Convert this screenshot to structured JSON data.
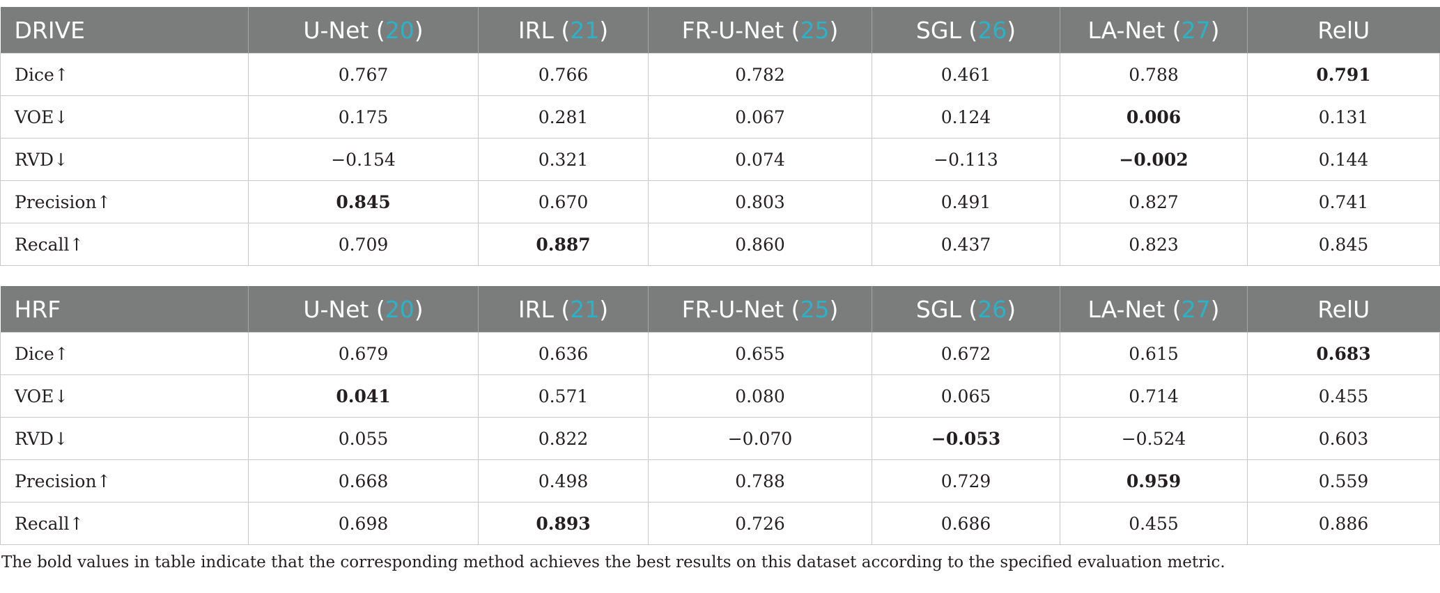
{
  "tables": [
    {
      "dataset": "DRIVE",
      "methods": [
        {
          "name": "U-Net",
          "ref": "20"
        },
        {
          "name": "IRL",
          "ref": "21"
        },
        {
          "name": "FR-U-Net",
          "ref": "25"
        },
        {
          "name": "SGL",
          "ref": "26"
        },
        {
          "name": "LA-Net",
          "ref": "27"
        },
        {
          "name": "RelU",
          "ref": ""
        }
      ],
      "rows": [
        {
          "metric": "Dice↑",
          "values": [
            "0.767",
            "0.766",
            "0.782",
            "0.461",
            "0.788",
            "0.791"
          ],
          "best": 5
        },
        {
          "metric": "VOE↓",
          "values": [
            "0.175",
            "0.281",
            "0.067",
            "0.124",
            "0.006",
            "0.131"
          ],
          "best": 4
        },
        {
          "metric": "RVD↓",
          "values": [
            "−0.154",
            "0.321",
            "0.074",
            "−0.113",
            "−0.002",
            "0.144"
          ],
          "best": 4
        },
        {
          "metric": "Precision↑",
          "values": [
            "0.845",
            "0.670",
            "0.803",
            "0.491",
            "0.827",
            "0.741"
          ],
          "best": 0
        },
        {
          "metric": "Recall↑",
          "values": [
            "0.709",
            "0.887",
            "0.860",
            "0.437",
            "0.823",
            "0.845"
          ],
          "best": 1
        }
      ]
    },
    {
      "dataset": "HRF",
      "methods": [
        {
          "name": "U-Net",
          "ref": "20"
        },
        {
          "name": "IRL",
          "ref": "21"
        },
        {
          "name": "FR-U-Net",
          "ref": "25"
        },
        {
          "name": "SGL",
          "ref": "26"
        },
        {
          "name": "LA-Net",
          "ref": "27"
        },
        {
          "name": "RelU",
          "ref": ""
        }
      ],
      "rows": [
        {
          "metric": "Dice↑",
          "values": [
            "0.679",
            "0.636",
            "0.655",
            "0.672",
            "0.615",
            "0.683"
          ],
          "best": 5
        },
        {
          "metric": "VOE↓",
          "values": [
            "0.041",
            "0.571",
            "0.080",
            "0.065",
            "0.714",
            "0.455"
          ],
          "best": 0
        },
        {
          "metric": "RVD↓",
          "values": [
            "0.055",
            "0.822",
            "−0.070",
            "−0.053",
            "−0.524",
            "0.603"
          ],
          "best": 3
        },
        {
          "metric": "Precision↑",
          "values": [
            "0.668",
            "0.498",
            "0.788",
            "0.729",
            "0.959",
            "0.559"
          ],
          "best": 4
        },
        {
          "metric": "Recall↑",
          "values": [
            "0.698",
            "0.893",
            "0.726",
            "0.686",
            "0.455",
            "0.886"
          ],
          "best": 1
        }
      ]
    }
  ],
  "footnote": "The bold values in table indicate that the corresponding method achieves the best results on this dataset according to the specified evaluation metric.",
  "colors": {
    "header_bg": "#7b7d7c",
    "header_text": "#ffffff",
    "reference_link": "#2ab3c6",
    "grid_line": "#c9c9c9"
  }
}
